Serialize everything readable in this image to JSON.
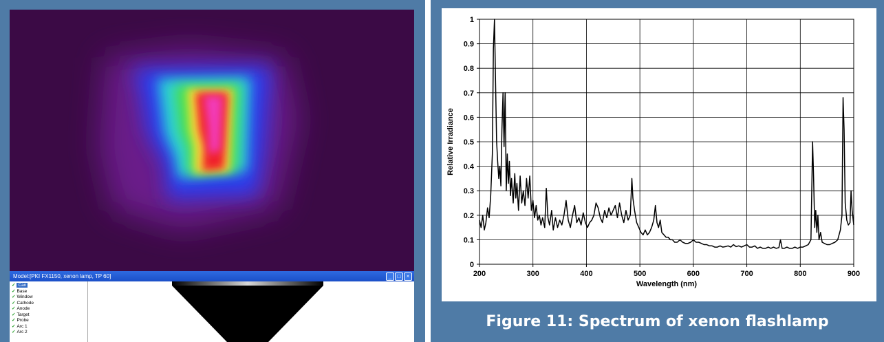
{
  "left_panel": {
    "window_title": "Model:[PKI FX1150, xenon lamp, TP 60]",
    "min_glyph": "_",
    "max_glyph": "□",
    "close_glyph": "×",
    "check_glyph": "✓",
    "tree_items": [
      {
        "label": "Can",
        "selected": true
      },
      {
        "label": "Base",
        "selected": false
      },
      {
        "label": "Window",
        "selected": false
      },
      {
        "label": "Cathode",
        "selected": false
      },
      {
        "label": "Anode",
        "selected": false
      },
      {
        "label": "Target",
        "selected": false
      },
      {
        "label": "Probe",
        "selected": false
      },
      {
        "label": "Arc 1",
        "selected": false
      },
      {
        "label": "Arc 2",
        "selected": false
      }
    ]
  },
  "right_panel": {
    "caption": "Figure 11: Spectrum of xenon flashlamp"
  },
  "colors": {
    "frame": "#4f7ba6",
    "heatmap_background": "#3b0a45",
    "line": "#000000",
    "grid": "#000000"
  },
  "chart_data": {
    "type": "line",
    "title": "",
    "xlabel": "Wavelength (nm)",
    "ylabel": "Relative Irradiance",
    "xlim": [
      200,
      900
    ],
    "ylim": [
      0,
      1
    ],
    "xticks": [
      200,
      300,
      400,
      500,
      600,
      700,
      800,
      900
    ],
    "yticks": [
      0,
      0.1,
      0.2,
      0.3,
      0.4,
      0.5,
      0.6,
      0.7,
      0.8,
      0.9,
      1
    ],
    "grid": true,
    "legend": "none",
    "series": [
      {
        "points": [
          [
            200,
            0.18
          ],
          [
            203,
            0.15
          ],
          [
            206,
            0.2
          ],
          [
            209,
            0.14
          ],
          [
            212,
            0.17
          ],
          [
            215,
            0.23
          ],
          [
            218,
            0.19
          ],
          [
            221,
            0.28
          ],
          [
            224,
            0.45
          ],
          [
            226,
            0.88
          ],
          [
            228,
            1.0
          ],
          [
            230,
            0.75
          ],
          [
            232,
            0.5
          ],
          [
            234,
            0.42
          ],
          [
            236,
            0.35
          ],
          [
            238,
            0.4
          ],
          [
            240,
            0.32
          ],
          [
            242,
            0.55
          ],
          [
            244,
            0.7
          ],
          [
            246,
            0.48
          ],
          [
            248,
            0.7
          ],
          [
            250,
            0.3
          ],
          [
            252,
            0.45
          ],
          [
            254,
            0.33
          ],
          [
            256,
            0.42
          ],
          [
            258,
            0.28
          ],
          [
            260,
            0.35
          ],
          [
            263,
            0.25
          ],
          [
            266,
            0.37
          ],
          [
            268,
            0.27
          ],
          [
            270,
            0.33
          ],
          [
            273,
            0.22
          ],
          [
            276,
            0.36
          ],
          [
            279,
            0.25
          ],
          [
            282,
            0.3
          ],
          [
            285,
            0.24
          ],
          [
            288,
            0.35
          ],
          [
            291,
            0.27
          ],
          [
            294,
            0.36
          ],
          [
            297,
            0.22
          ],
          [
            300,
            0.26
          ],
          [
            303,
            0.19
          ],
          [
            306,
            0.24
          ],
          [
            309,
            0.18
          ],
          [
            312,
            0.2
          ],
          [
            315,
            0.16
          ],
          [
            318,
            0.19
          ],
          [
            322,
            0.15
          ],
          [
            325,
            0.31
          ],
          [
            328,
            0.19
          ],
          [
            331,
            0.16
          ],
          [
            335,
            0.22
          ],
          [
            338,
            0.14
          ],
          [
            342,
            0.19
          ],
          [
            346,
            0.15
          ],
          [
            350,
            0.18
          ],
          [
            354,
            0.16
          ],
          [
            358,
            0.2
          ],
          [
            362,
            0.26
          ],
          [
            366,
            0.18
          ],
          [
            370,
            0.15
          ],
          [
            374,
            0.2
          ],
          [
            378,
            0.24
          ],
          [
            382,
            0.17
          ],
          [
            386,
            0.19
          ],
          [
            390,
            0.16
          ],
          [
            394,
            0.21
          ],
          [
            398,
            0.17
          ],
          [
            402,
            0.15
          ],
          [
            406,
            0.17
          ],
          [
            410,
            0.18
          ],
          [
            414,
            0.2
          ],
          [
            418,
            0.25
          ],
          [
            422,
            0.23
          ],
          [
            426,
            0.19
          ],
          [
            430,
            0.17
          ],
          [
            434,
            0.22
          ],
          [
            438,
            0.19
          ],
          [
            442,
            0.23
          ],
          [
            446,
            0.2
          ],
          [
            450,
            0.22
          ],
          [
            454,
            0.24
          ],
          [
            458,
            0.19
          ],
          [
            462,
            0.25
          ],
          [
            466,
            0.2
          ],
          [
            470,
            0.17
          ],
          [
            474,
            0.22
          ],
          [
            478,
            0.18
          ],
          [
            482,
            0.2
          ],
          [
            485,
            0.35
          ],
          [
            487,
            0.27
          ],
          [
            490,
            0.22
          ],
          [
            494,
            0.17
          ],
          [
            498,
            0.15
          ],
          [
            502,
            0.13
          ],
          [
            506,
            0.12
          ],
          [
            510,
            0.14
          ],
          [
            514,
            0.12
          ],
          [
            518,
            0.13
          ],
          [
            522,
            0.15
          ],
          [
            526,
            0.18
          ],
          [
            529,
            0.24
          ],
          [
            532,
            0.17
          ],
          [
            535,
            0.15
          ],
          [
            538,
            0.18
          ],
          [
            541,
            0.13
          ],
          [
            545,
            0.12
          ],
          [
            549,
            0.11
          ],
          [
            553,
            0.11
          ],
          [
            557,
            0.1
          ],
          [
            561,
            0.1
          ],
          [
            565,
            0.09
          ],
          [
            570,
            0.09
          ],
          [
            575,
            0.1
          ],
          [
            580,
            0.09
          ],
          [
            585,
            0.085
          ],
          [
            590,
            0.085
          ],
          [
            595,
            0.09
          ],
          [
            600,
            0.1
          ],
          [
            605,
            0.09
          ],
          [
            610,
            0.09
          ],
          [
            615,
            0.085
          ],
          [
            620,
            0.08
          ],
          [
            625,
            0.08
          ],
          [
            630,
            0.075
          ],
          [
            635,
            0.075
          ],
          [
            640,
            0.07
          ],
          [
            645,
            0.07
          ],
          [
            650,
            0.075
          ],
          [
            655,
            0.07
          ],
          [
            660,
            0.072
          ],
          [
            665,
            0.075
          ],
          [
            670,
            0.07
          ],
          [
            675,
            0.08
          ],
          [
            680,
            0.072
          ],
          [
            685,
            0.075
          ],
          [
            690,
            0.07
          ],
          [
            695,
            0.075
          ],
          [
            700,
            0.08
          ],
          [
            705,
            0.07
          ],
          [
            710,
            0.07
          ],
          [
            715,
            0.075
          ],
          [
            720,
            0.065
          ],
          [
            725,
            0.07
          ],
          [
            730,
            0.065
          ],
          [
            735,
            0.065
          ],
          [
            740,
            0.07
          ],
          [
            745,
            0.065
          ],
          [
            750,
            0.07
          ],
          [
            755,
            0.065
          ],
          [
            760,
            0.068
          ],
          [
            763,
            0.1
          ],
          [
            766,
            0.065
          ],
          [
            770,
            0.065
          ],
          [
            775,
            0.07
          ],
          [
            780,
            0.065
          ],
          [
            785,
            0.065
          ],
          [
            790,
            0.07
          ],
          [
            795,
            0.065
          ],
          [
            800,
            0.07
          ],
          [
            805,
            0.07
          ],
          [
            810,
            0.075
          ],
          [
            815,
            0.08
          ],
          [
            820,
            0.1
          ],
          [
            823,
            0.5
          ],
          [
            825,
            0.35
          ],
          [
            827,
            0.15
          ],
          [
            829,
            0.22
          ],
          [
            831,
            0.13
          ],
          [
            833,
            0.2
          ],
          [
            835,
            0.1
          ],
          [
            838,
            0.13
          ],
          [
            841,
            0.09
          ],
          [
            845,
            0.085
          ],
          [
            850,
            0.08
          ],
          [
            855,
            0.08
          ],
          [
            860,
            0.085
          ],
          [
            865,
            0.09
          ],
          [
            870,
            0.1
          ],
          [
            875,
            0.14
          ],
          [
            878,
            0.2
          ],
          [
            880,
            0.68
          ],
          [
            882,
            0.55
          ],
          [
            884,
            0.25
          ],
          [
            887,
            0.18
          ],
          [
            890,
            0.16
          ],
          [
            893,
            0.17
          ],
          [
            895,
            0.3
          ],
          [
            897,
            0.22
          ],
          [
            900,
            0.16
          ]
        ]
      }
    ]
  }
}
